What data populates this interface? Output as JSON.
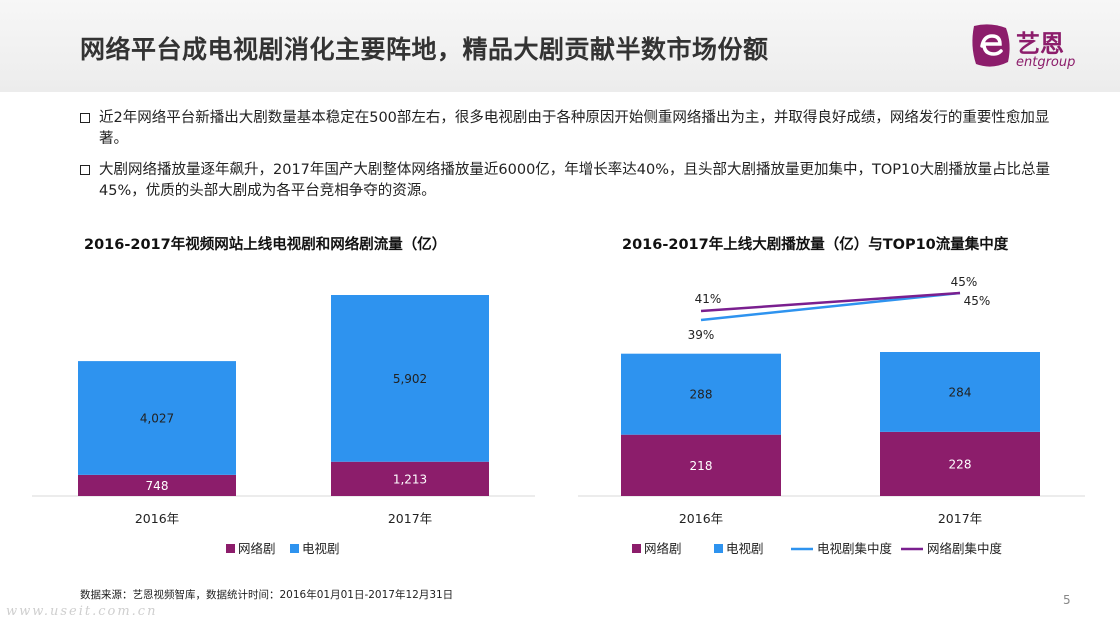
{
  "header": {
    "title": "网络平台成电视剧消化主要阵地，精品大剧贡献半数市场份额",
    "logo": {
      "text": "艺恩",
      "sub": "entgroup",
      "color": "#8c1d6b"
    }
  },
  "bullets": [
    "近2年网络平台新播出大剧数量基本稳定在500部左右，很多电视剧由于各种原因开始侧重网络播出为主，并取得良好成绩，网络发行的重要性愈加显著。",
    "大剧网络播放量逐年飙升，2017年国产大剧整体网络播放量近6000亿，年增长率达40%，且头部大剧播放量更加集中，TOP10大剧播放量占比总量45%，优质的头部大剧成为各平台竞相争夺的资源。"
  ],
  "chart_data": [
    {
      "type": "bar",
      "stacked": true,
      "title": "2016-2017年视频网站上线电视剧和网络剧流量（亿）",
      "categories": [
        "2016年",
        "2017年"
      ],
      "series": [
        {
          "name": "网络剧",
          "values": [
            748,
            1213
          ],
          "labels": [
            "748",
            "1,213"
          ],
          "color": "#8c1d6b"
        },
        {
          "name": "电视剧",
          "values": [
            4027,
            5902
          ],
          "labels": [
            "4,027",
            "5,902"
          ],
          "color": "#2e93ef"
        }
      ],
      "legend": "bottom",
      "grid": false
    },
    {
      "type": "bar",
      "stacked": true,
      "title": "2016-2017年上线大剧播放量（亿）与TOP10流量集中度",
      "categories": [
        "2016年",
        "2017年"
      ],
      "series": [
        {
          "name": "网络剧",
          "values": [
            218,
            228
          ],
          "labels": [
            "218",
            "228"
          ],
          "color": "#8c1d6b"
        },
        {
          "name": "电视剧",
          "values": [
            288,
            284
          ],
          "labels": [
            "288",
            "284"
          ],
          "color": "#2e93ef"
        }
      ],
      "lines": [
        {
          "name": "电视剧集中度",
          "values": [
            39,
            45
          ],
          "labels": [
            "39%",
            "45%"
          ],
          "color": "#2e93ef"
        },
        {
          "name": "网络剧集中度",
          "values": [
            41,
            45
          ],
          "labels": [
            "41%",
            "45%"
          ],
          "color": "#7a1f8f"
        }
      ],
      "legend": "bottom",
      "grid": false
    }
  ],
  "footer": {
    "source": "数据来源：艺恩视频智库，数据统计时间：2016年01月01日-2017年12月31日",
    "page": "5",
    "watermark": "www.useit.com.cn"
  }
}
